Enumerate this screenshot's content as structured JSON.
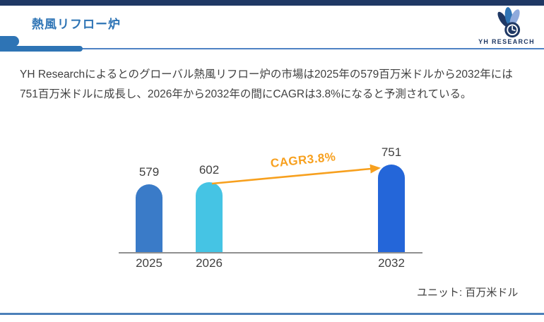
{
  "page": {
    "title": "熱風リフロー炉",
    "accent_color": "#2E74B5",
    "top_bar_color": "#1F3864",
    "bottom_line_color": "#4C80B9"
  },
  "brand": {
    "name": "YH RESEARCH",
    "color": "#1F3864",
    "leaf_colors": [
      "#1F3864",
      "#2E74B5",
      "#8FAADC"
    ]
  },
  "intro": {
    "lines": [
      "YH Researchによるとのグローバル熱風リフロー炉の市場は2025年の579百万米ドルから2032年には",
      "751百万米ドルに成長し、2026年から2032年の間にCAGRは3.8%になると予測されている。"
    ]
  },
  "chart_data": {
    "type": "bar",
    "title": "",
    "categories": [
      "2025",
      "2026",
      "2032"
    ],
    "values": [
      579,
      602,
      751
    ],
    "bar_colors": [
      "#3A7BC8",
      "#45C4E4",
      "#2466D9"
    ],
    "ylim": [
      0,
      800
    ],
    "grid": false,
    "legend": false,
    "baseline_color": "#909090",
    "label_color": "#3F3F3F",
    "annotation": {
      "label": "CAGR3.8%",
      "color": "#F7A01E",
      "from_category": "2026",
      "to_category": "2032"
    },
    "unit_note": "ユニット: 百万米ドル"
  }
}
